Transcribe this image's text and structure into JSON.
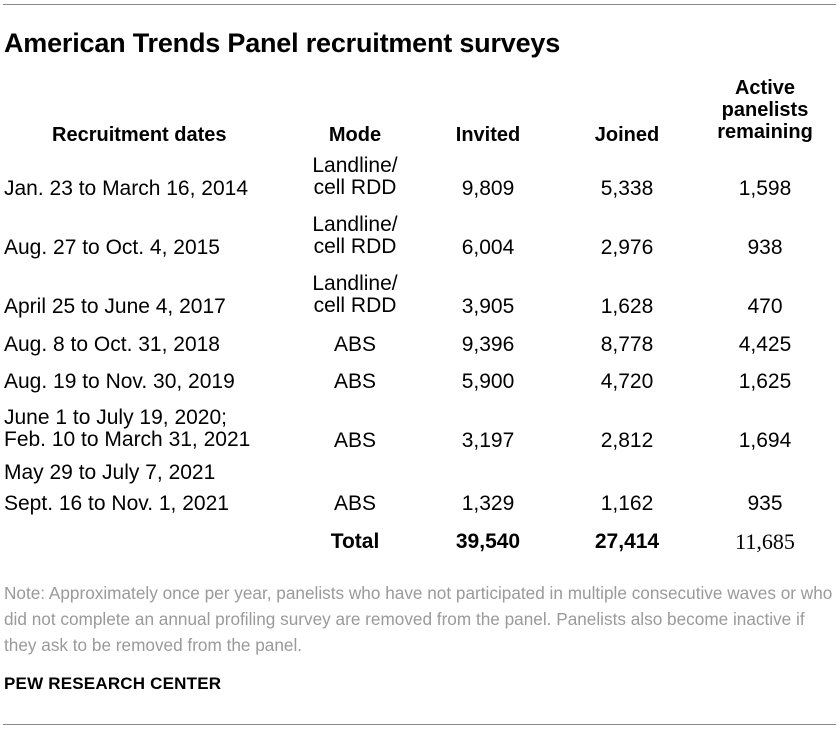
{
  "title": "American Trends Panel recruitment surveys",
  "headers": {
    "dates": "Recruitment dates",
    "mode": "Mode",
    "invited": "Invited",
    "joined": "Joined",
    "active_line1": "Active",
    "active_line2": "panelists",
    "active_line3": "remaining"
  },
  "rows": [
    {
      "dates_line1": "",
      "dates_line2": "Jan. 23 to March 16, 2014",
      "mode_line1": "Landline/",
      "mode_line2": "cell RDD",
      "invited": "9,809",
      "joined": "5,338",
      "active": "1,598"
    },
    {
      "dates_line1": "",
      "dates_line2": "Aug. 27 to Oct. 4, 2015",
      "mode_line1": "Landline/",
      "mode_line2": "cell RDD",
      "invited": "6,004",
      "joined": "2,976",
      "active": "938"
    },
    {
      "dates_line1": "",
      "dates_line2": "April 25 to June 4, 2017",
      "mode_line1": "Landline/",
      "mode_line2": "cell RDD",
      "invited": "3,905",
      "joined": "1,628",
      "active": "470"
    },
    {
      "dates_line1": "",
      "dates_line2": "Aug. 8 to Oct. 31, 2018",
      "mode_line1": "",
      "mode_line2": "ABS",
      "invited": "9,396",
      "joined": "8,778",
      "active": "4,425"
    },
    {
      "dates_line1": "",
      "dates_line2": "Aug. 19 to Nov. 30, 2019",
      "mode_line1": "",
      "mode_line2": "ABS",
      "invited": "5,900",
      "joined": "4,720",
      "active": "1,625"
    },
    {
      "dates_line1": "June 1 to July 19, 2020;",
      "dates_line2": "Feb. 10 to March 31, 2021",
      "mode_line1": "",
      "mode_line2": "ABS",
      "invited": "3,197",
      "joined": "2,812",
      "active": "1,694"
    },
    {
      "dates_line1": "May 29 to July 7, 2021",
      "dates_line2": "Sept. 16 to Nov. 1, 2021",
      "mode_line1": "",
      "mode_line2": "ABS",
      "invited": "1,329",
      "joined": "1,162",
      "active": "935"
    }
  ],
  "total": {
    "label": "Total",
    "invited": "39,540",
    "joined": "27,414",
    "active": "11,685"
  },
  "note": "Note: Approximately once per year, panelists who have not participated in multiple consecutive waves or who did not complete an annual profiling survey are removed from the panel. Panelists also become inactive if they ask to be removed from the panel.",
  "source": "PEW RESEARCH CENTER"
}
